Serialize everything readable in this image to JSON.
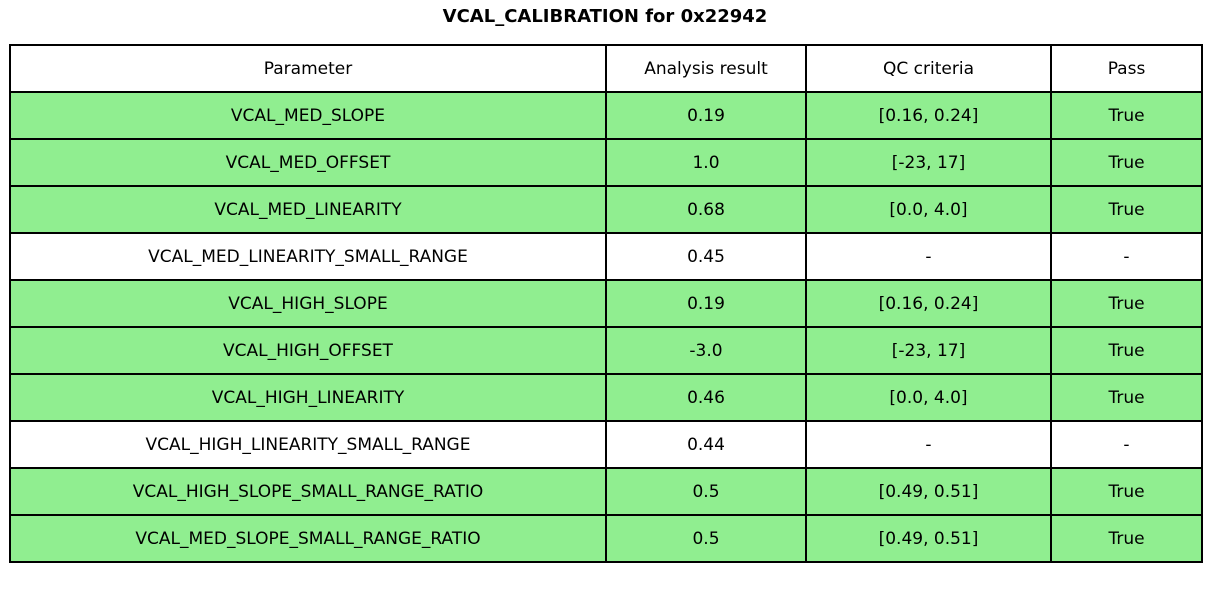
{
  "title": "VCAL_CALIBRATION for 0x22942",
  "colors": {
    "pass_row": "#90ee90",
    "neutral_row": "#ffffff",
    "border": "#000000",
    "background": "#ffffff"
  },
  "chart_data": {
    "type": "table",
    "title": "VCAL_CALIBRATION for 0x22942",
    "columns": [
      "Parameter",
      "Analysis result",
      "QC criteria",
      "Pass"
    ],
    "rows": [
      {
        "parameter": "VCAL_MED_SLOPE",
        "result": "0.19",
        "criteria": "[0.16, 0.24]",
        "pass": "True"
      },
      {
        "parameter": "VCAL_MED_OFFSET",
        "result": "1.0",
        "criteria": "[-23, 17]",
        "pass": "True"
      },
      {
        "parameter": "VCAL_MED_LINEARITY",
        "result": "0.68",
        "criteria": "[0.0, 4.0]",
        "pass": "True"
      },
      {
        "parameter": "VCAL_MED_LINEARITY_SMALL_RANGE",
        "result": "0.45",
        "criteria": "-",
        "pass": "-"
      },
      {
        "parameter": "VCAL_HIGH_SLOPE",
        "result": "0.19",
        "criteria": "[0.16, 0.24]",
        "pass": "True"
      },
      {
        "parameter": "VCAL_HIGH_OFFSET",
        "result": "-3.0",
        "criteria": "[-23, 17]",
        "pass": "True"
      },
      {
        "parameter": "VCAL_HIGH_LINEARITY",
        "result": "0.46",
        "criteria": "[0.0, 4.0]",
        "pass": "True"
      },
      {
        "parameter": "VCAL_HIGH_LINEARITY_SMALL_RANGE",
        "result": "0.44",
        "criteria": "-",
        "pass": "-"
      },
      {
        "parameter": "VCAL_HIGH_SLOPE_SMALL_RANGE_RATIO",
        "result": "0.5",
        "criteria": "[0.49, 0.51]",
        "pass": "True"
      },
      {
        "parameter": "VCAL_MED_SLOPE_SMALL_RANGE_RATIO",
        "result": "0.5",
        "criteria": "[0.49, 0.51]",
        "pass": "True"
      }
    ],
    "layout_hints": {
      "highlight_rule": "rows with pass == 'True' are filled with pass_row color",
      "grid": true,
      "header_background": "#ffffff"
    }
  }
}
